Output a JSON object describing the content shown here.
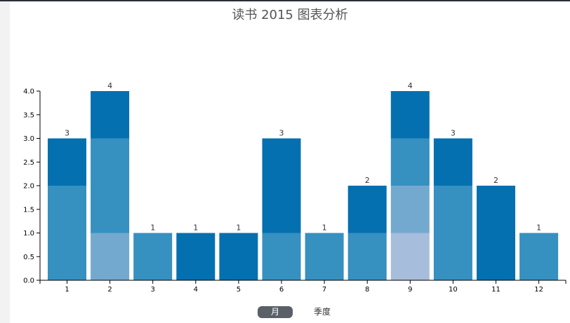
{
  "title": "读书 2015 图表分析",
  "toggles": {
    "month": "月",
    "season": "季度"
  },
  "colors": {
    "c1": "#0570b0",
    "c2": "#3690c0",
    "c3": "#74a9cf",
    "c4": "#a6bddb"
  },
  "chart_data": {
    "type": "bar",
    "stacked": true,
    "categories": [
      "1",
      "2",
      "3",
      "4",
      "5",
      "6",
      "7",
      "8",
      "9",
      "10",
      "11",
      "12"
    ],
    "totals": [
      3,
      4,
      1,
      1,
      1,
      3,
      1,
      2,
      4,
      3,
      2,
      1
    ],
    "segments": [
      [
        {
          "value": 2,
          "color": "c2"
        },
        {
          "value": 1,
          "color": "c1"
        }
      ],
      [
        {
          "value": 1,
          "color": "c3"
        },
        {
          "value": 2,
          "color": "c2"
        },
        {
          "value": 1,
          "color": "c1"
        }
      ],
      [
        {
          "value": 1,
          "color": "c2"
        }
      ],
      [
        {
          "value": 1,
          "color": "c1"
        }
      ],
      [
        {
          "value": 1,
          "color": "c1"
        }
      ],
      [
        {
          "value": 1,
          "color": "c2"
        },
        {
          "value": 2,
          "color": "c1"
        }
      ],
      [
        {
          "value": 1,
          "color": "c2"
        }
      ],
      [
        {
          "value": 1,
          "color": "c2"
        },
        {
          "value": 1,
          "color": "c1"
        }
      ],
      [
        {
          "value": 1,
          "color": "c4"
        },
        {
          "value": 1,
          "color": "c3"
        },
        {
          "value": 1,
          "color": "c2"
        },
        {
          "value": 1,
          "color": "c1"
        }
      ],
      [
        {
          "value": 2,
          "color": "c2"
        },
        {
          "value": 1,
          "color": "c1"
        }
      ],
      [
        {
          "value": 2,
          "color": "c1"
        }
      ],
      [
        {
          "value": 1,
          "color": "c2"
        }
      ]
    ],
    "ylim": [
      0,
      4
    ],
    "yticks": [
      "0.0",
      "0.5",
      "1.0",
      "1.5",
      "2.0",
      "2.5",
      "3.0",
      "3.5",
      "4.0"
    ]
  }
}
